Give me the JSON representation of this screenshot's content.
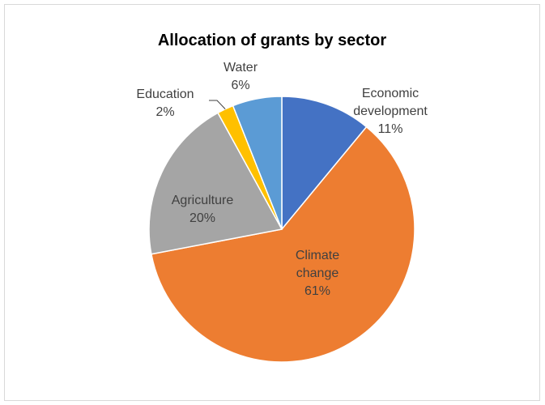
{
  "chart_data": {
    "type": "pie",
    "title": "Allocation of grants by sector",
    "start_angle_deg": 0,
    "direction": "clockwise",
    "slices": [
      {
        "name": "Economic development",
        "value": 11,
        "label_lines": [
          "Economic",
          "development",
          "11%"
        ],
        "color": "#4472C4"
      },
      {
        "name": "Climate change",
        "value": 61,
        "label_lines": [
          "Climate",
          "change",
          "61%"
        ],
        "color": "#ED7D31"
      },
      {
        "name": "Agriculture",
        "value": 20,
        "label_lines": [
          "Agriculture",
          "20%"
        ],
        "color": "#A5A5A5"
      },
      {
        "name": "Education",
        "value": 2,
        "label_lines": [
          "Education",
          "2%"
        ],
        "color": "#FFC000"
      },
      {
        "name": "Water",
        "value": 6,
        "label_lines": [
          "Water",
          "6%"
        ],
        "color": "#5B9BD5"
      }
    ],
    "legend": "none"
  }
}
